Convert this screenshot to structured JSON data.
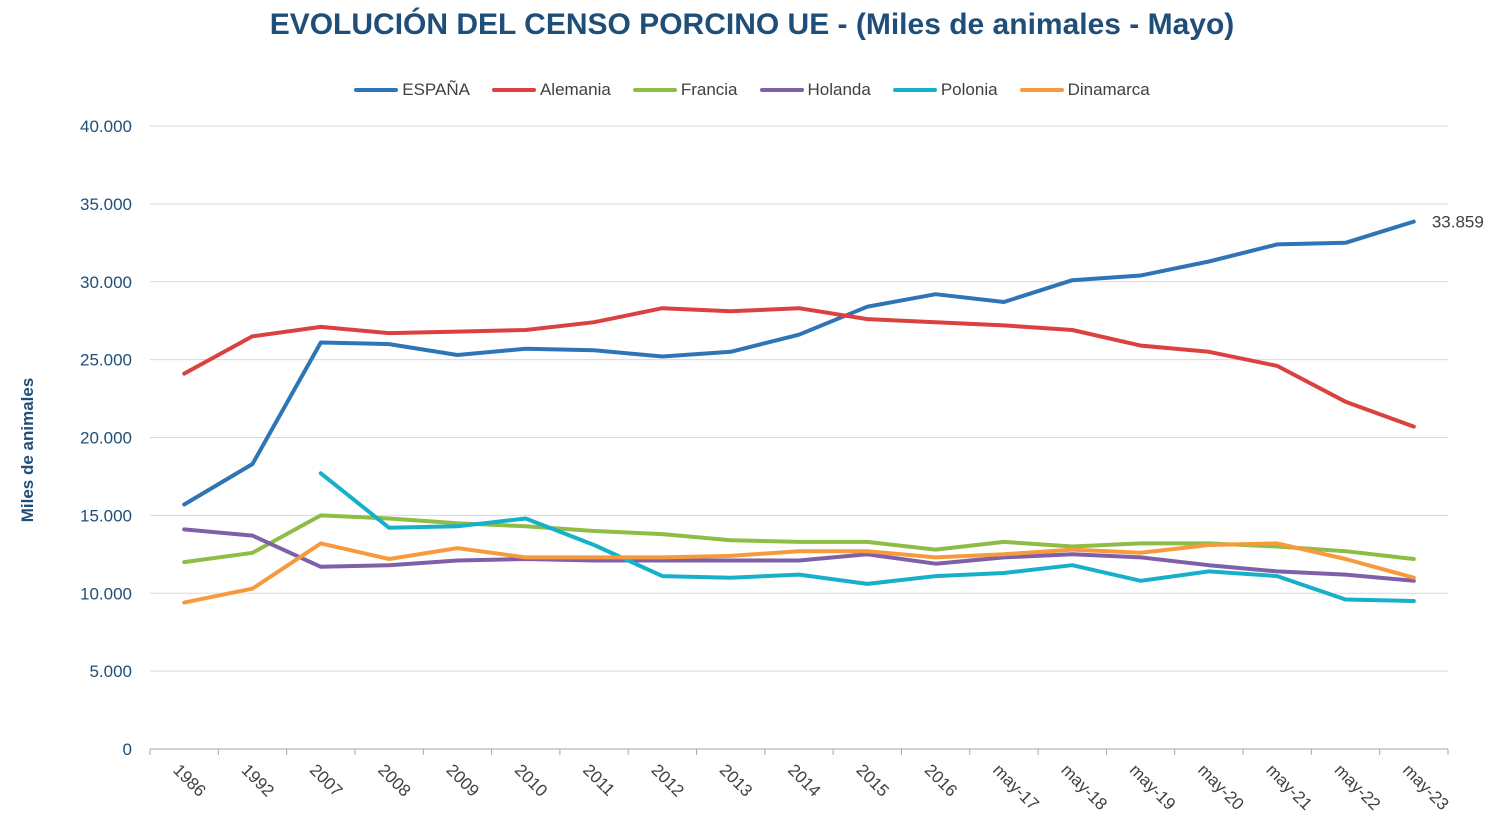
{
  "chart_data": {
    "type": "line",
    "title": "EVOLUCIÓN DEL CENSO PORCINO UE - (Miles de animales - Mayo)",
    "xlabel": "",
    "ylabel": "Miles de animales",
    "ylim": [
      0,
      40000
    ],
    "yticks": [
      0,
      5000,
      10000,
      15000,
      20000,
      25000,
      30000,
      35000,
      40000
    ],
    "ytick_labels": [
      "0",
      "5.000",
      "10.000",
      "15.000",
      "20.000",
      "25.000",
      "30.000",
      "35.000",
      "40.000"
    ],
    "grid": true,
    "legend_position": "top",
    "categories": [
      "1986",
      "1992",
      "2007",
      "2008",
      "2009",
      "2010",
      "2011",
      "2012",
      "2013",
      "2014",
      "2015",
      "2016",
      "may-17",
      "may-18",
      "may-19",
      "may-20",
      "may-21",
      "may-22",
      "may-23"
    ],
    "series": [
      {
        "name": "ESPAÑA",
        "color": "#2e75b6",
        "values": [
          15700,
          18300,
          26100,
          26000,
          25300,
          25700,
          25600,
          25200,
          25500,
          26600,
          28400,
          29200,
          28700,
          30100,
          30400,
          31300,
          32400,
          32500,
          33859
        ]
      },
      {
        "name": "Alemania",
        "color": "#d9423e",
        "values": [
          24100,
          26500,
          27100,
          26700,
          26800,
          26900,
          27400,
          28300,
          28100,
          28300,
          27600,
          27400,
          27200,
          26900,
          25900,
          25500,
          24600,
          22300,
          20700
        ]
      },
      {
        "name": "Francia",
        "color": "#8fbc45",
        "values": [
          12000,
          12600,
          15000,
          14800,
          14500,
          14300,
          14000,
          13800,
          13400,
          13300,
          13300,
          12800,
          13300,
          13000,
          13200,
          13200,
          13000,
          12700,
          12200
        ]
      },
      {
        "name": "Holanda",
        "color": "#7f5fa8",
        "values": [
          14100,
          13700,
          11700,
          11800,
          12100,
          12200,
          12100,
          12100,
          12100,
          12100,
          12500,
          11900,
          12300,
          12500,
          12300,
          11800,
          11400,
          11200,
          10800
        ]
      },
      {
        "name": "Polonia",
        "color": "#17b0c9",
        "values": [
          null,
          null,
          17700,
          14200,
          14300,
          14800,
          13100,
          11100,
          11000,
          11200,
          10600,
          11100,
          11300,
          11800,
          10800,
          11400,
          11100,
          9600,
          9500
        ]
      },
      {
        "name": "Dinamarca",
        "color": "#f79a3e",
        "values": [
          9400,
          10300,
          13200,
          12200,
          12900,
          12300,
          12300,
          12300,
          12400,
          12700,
          12700,
          12300,
          12500,
          12800,
          12600,
          13100,
          13200,
          12200,
          11000
        ]
      }
    ],
    "annotations": [
      {
        "series": "ESPAÑA",
        "category": "may-23",
        "text": "33.859"
      }
    ]
  },
  "style": {
    "axis_color": "#1f4e79",
    "grid_color": "#d9d9d9",
    "text_color": "#404040"
  }
}
